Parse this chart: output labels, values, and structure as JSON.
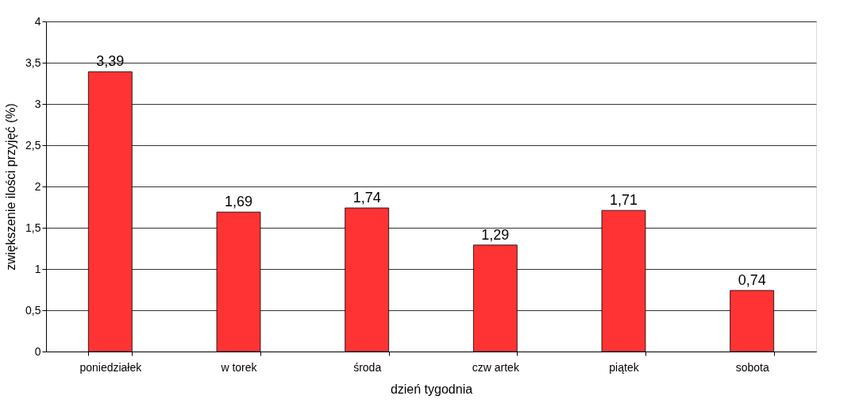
{
  "chart_data": {
    "type": "bar",
    "xlabel": "dzień tygodnia",
    "ylabel": "zwiększenie ilości przyjęć (%)",
    "categories": [
      "poniedziałek",
      "w torek",
      "środa",
      "czw artek",
      "piątek",
      "sobota"
    ],
    "values": [
      3.39,
      1.69,
      1.74,
      1.29,
      1.71,
      0.74
    ],
    "value_labels": [
      "3,39",
      "1,69",
      "1,74",
      "1,29",
      "1,71",
      "0,74"
    ],
    "color": "#ff3333",
    "ylim": [
      0,
      4
    ],
    "yticks": [
      0,
      {
        "value": 0.5,
        "label": "0,5"
      },
      1,
      {
        "value": 1.5,
        "label": "1,5"
      },
      2,
      {
        "value": 2.5,
        "label": "2,5"
      },
      3,
      {
        "value": 3.5,
        "label": "3,5"
      },
      4
    ],
    "grid": "y"
  }
}
